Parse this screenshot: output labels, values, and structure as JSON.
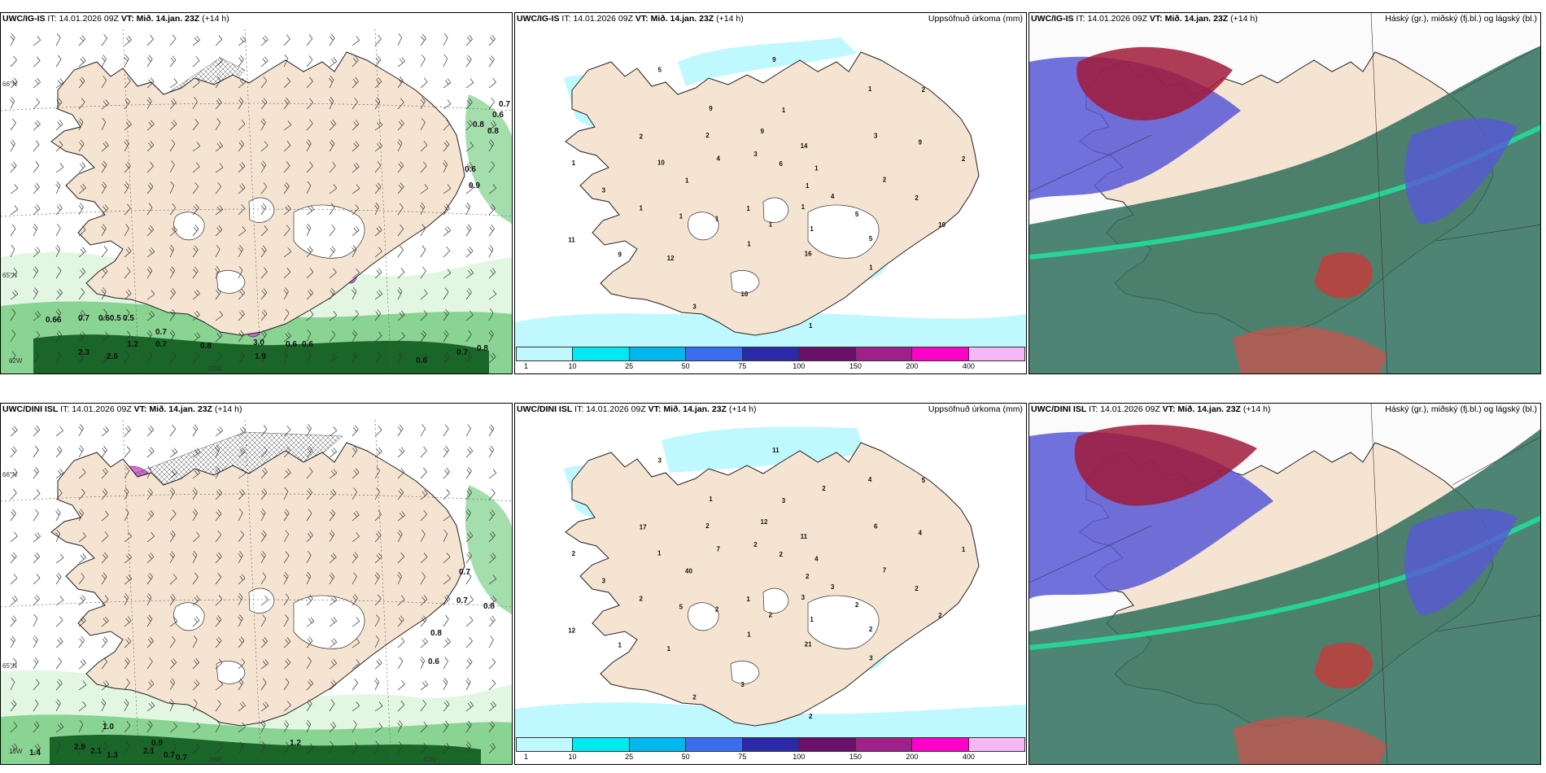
{
  "panels": [
    {
      "id": "p1",
      "title_prefix": "UWC/IG-IS",
      "it_label": "IT:",
      "it_value": "14.01.2026 09Z",
      "vt_label": "VT:",
      "vt_value": "Mið. 14.jan. 23Z",
      "lead": "(+14 h)",
      "right_title": "",
      "kind": "wind-snow",
      "values": [
        "0.7",
        "0.6",
        "0.8",
        "0.8",
        "0.6",
        "0.9",
        "0.66",
        "0.7",
        "0.60.5",
        "0.5",
        "0.7",
        "0.7",
        "0.8",
        "3.0",
        "0.6",
        "0.6",
        "0.7",
        "0.8",
        "2.3",
        "2.6",
        "1.2",
        "1.9",
        "0.6"
      ],
      "grid_labels": [
        "66°N",
        "65°N",
        "20W",
        "62W"
      ]
    },
    {
      "id": "p2",
      "title_prefix": "UWC/IG-IS",
      "it_label": "IT:",
      "it_value": "14.01.2026 09Z",
      "vt_label": "VT:",
      "vt_value": "Mið. 14.jan. 23Z",
      "lead": "(+14 h)",
      "right_title": "Uppsöfnuð úrkoma (mm)",
      "kind": "precip",
      "values": [
        "1",
        "1",
        "1",
        "1",
        "1",
        "1",
        "1",
        "9",
        "10",
        "11",
        "14",
        "16",
        "2",
        "2",
        "1",
        "9",
        "5",
        "3",
        "2",
        "1",
        "2",
        "2",
        "9",
        "6",
        "1",
        "10",
        "9",
        "3",
        "3",
        "5",
        "1",
        "1",
        "1",
        "4",
        "2",
        "12",
        "9",
        "1",
        "1",
        "3",
        "10",
        "5",
        "4",
        "1"
      ],
      "colorbar": {
        "colors": [
          "#bff8ff",
          "#00e8f0",
          "#00b8ee",
          "#3a6cf0",
          "#2a2aa8",
          "#6a0f6a",
          "#a0208a",
          "#ff00c8",
          "#f5b8f5"
        ],
        "ticks": [
          "1",
          "10",
          "25",
          "50",
          "75",
          "100",
          "150",
          "200",
          "400"
        ]
      }
    },
    {
      "id": "p3",
      "title_prefix": "UWC/IG-IS",
      "it_label": "IT:",
      "it_value": "14.01.2026 09Z",
      "vt_label": "VT:",
      "vt_value": "Mið. 14.jan. 23Z",
      "lead": "(+14 h)",
      "right_title": "Háský (gr.), miðský (fj.bl.) og lágský (bl.)",
      "kind": "clouds"
    },
    {
      "id": "p4",
      "title_prefix": "UWC/DINI ISL",
      "it_label": "IT:",
      "it_value": "14.01.2026 09Z",
      "vt_label": "VT:",
      "vt_value": "Mið. 14.jan. 23Z",
      "lead": "(+14 h)",
      "right_title": "",
      "kind": "wind-snow",
      "values": [
        "0.7",
        "0.7",
        "0.8",
        "0.8",
        "0.6",
        "1.0",
        "0.9",
        "1.2",
        "2.9",
        "2.1",
        "1.3",
        "2.1",
        "0.7",
        "1.4",
        "0.7"
      ],
      "grid_labels": [
        "66°N",
        "65°N",
        "20W",
        "15W",
        "63N"
      ]
    },
    {
      "id": "p5",
      "title_prefix": "UWC/DINI ISL",
      "it_label": "IT:",
      "it_value": "14.01.2026 09Z",
      "vt_label": "VT:",
      "vt_value": "Mið. 14.jan. 23Z",
      "lead": "(+14 h)",
      "right_title": "Uppsöfnuð úrkoma (mm)",
      "kind": "precip",
      "values": [
        "2",
        "2",
        "3",
        "3",
        "2",
        "4",
        "1",
        "1",
        "2",
        "12",
        "11",
        "21",
        "17",
        "1",
        "1",
        "12",
        "2",
        "3",
        "5",
        "2",
        "2",
        "2",
        "1",
        "2",
        "1",
        "1",
        "4",
        "2",
        "2",
        "2",
        "2",
        "4",
        "2",
        "7",
        "7",
        "1",
        "11",
        "3",
        "40",
        "6",
        "3",
        "3",
        "3",
        "5",
        "2"
      ],
      "colorbar": {
        "colors": [
          "#bff8ff",
          "#00e8f0",
          "#00b8ee",
          "#3a6cf0",
          "#2a2aa8",
          "#6a0f6a",
          "#a0208a",
          "#ff00c8",
          "#f5b8f5"
        ],
        "ticks": [
          "1",
          "10",
          "25",
          "50",
          "75",
          "100",
          "150",
          "200",
          "400"
        ]
      }
    },
    {
      "id": "p6",
      "title_prefix": "UWC/DINI ISL",
      "it_label": "IT:",
      "it_value": "14.01.2026 09Z",
      "vt_label": "VT:",
      "vt_value": "Mið. 14.jan. 23Z",
      "lead": "(+14 h)",
      "right_title": "Háský (gr.), miðský (fj.bl.) og lágský (bl.)",
      "kind": "clouds"
    }
  ],
  "colors": {
    "land": "#f6e4d2",
    "ice": "#ffffff",
    "snow_light": "#e0f5e0",
    "snow_mid": "#7fd08a",
    "snow_dark": "#0e5a1e",
    "snow_pink": "#d454d4",
    "precip_light": "#bff8ff",
    "cloud_high": "#2e6e5a",
    "cloud_mid": "#5858d8",
    "cloud_low": "#a01a3a"
  }
}
